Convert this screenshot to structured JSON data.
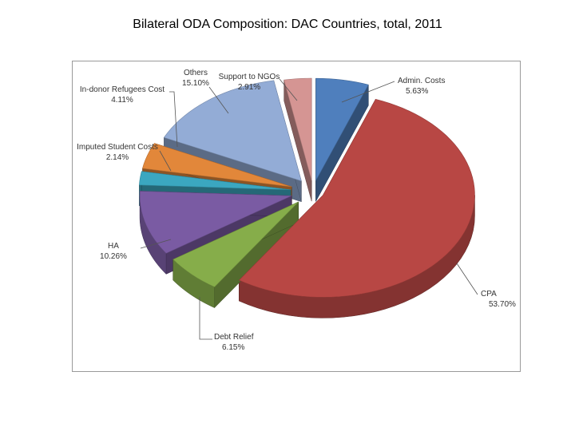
{
  "chart_data": {
    "type": "pie",
    "title": "Bilateral ODA Composition: DAC Countries, total, 2011",
    "slices": [
      {
        "name": "Admin. Costs",
        "value": 5.63,
        "label_value": "5.63%",
        "color": "#4f7fbd"
      },
      {
        "name": "CPA",
        "value": 53.7,
        "label_value": "53.70%",
        "color": "#b84744"
      },
      {
        "name": "Debt Relief",
        "value": 6.15,
        "label_value": "6.15%",
        "color": "#86ad4a"
      },
      {
        "name": "HA",
        "value": 10.26,
        "label_value": "10.26%",
        "color": "#7a5ba3"
      },
      {
        "name": "Imputed Student Costs",
        "value": 2.14,
        "label_value": "2.14%",
        "color": "#3ba7c0"
      },
      {
        "name": "In-donor Refugees Cost",
        "value": 4.11,
        "label_value": "4.11%",
        "color": "#e2873a"
      },
      {
        "name": "Others",
        "value": 15.1,
        "label_value": "15.10%",
        "color": "#93acd6"
      },
      {
        "name": "Support to NGOs",
        "value": 2.91,
        "label_value": "2.91%",
        "color": "#d59593"
      }
    ],
    "style": "3d-exploded",
    "legend": "none"
  }
}
